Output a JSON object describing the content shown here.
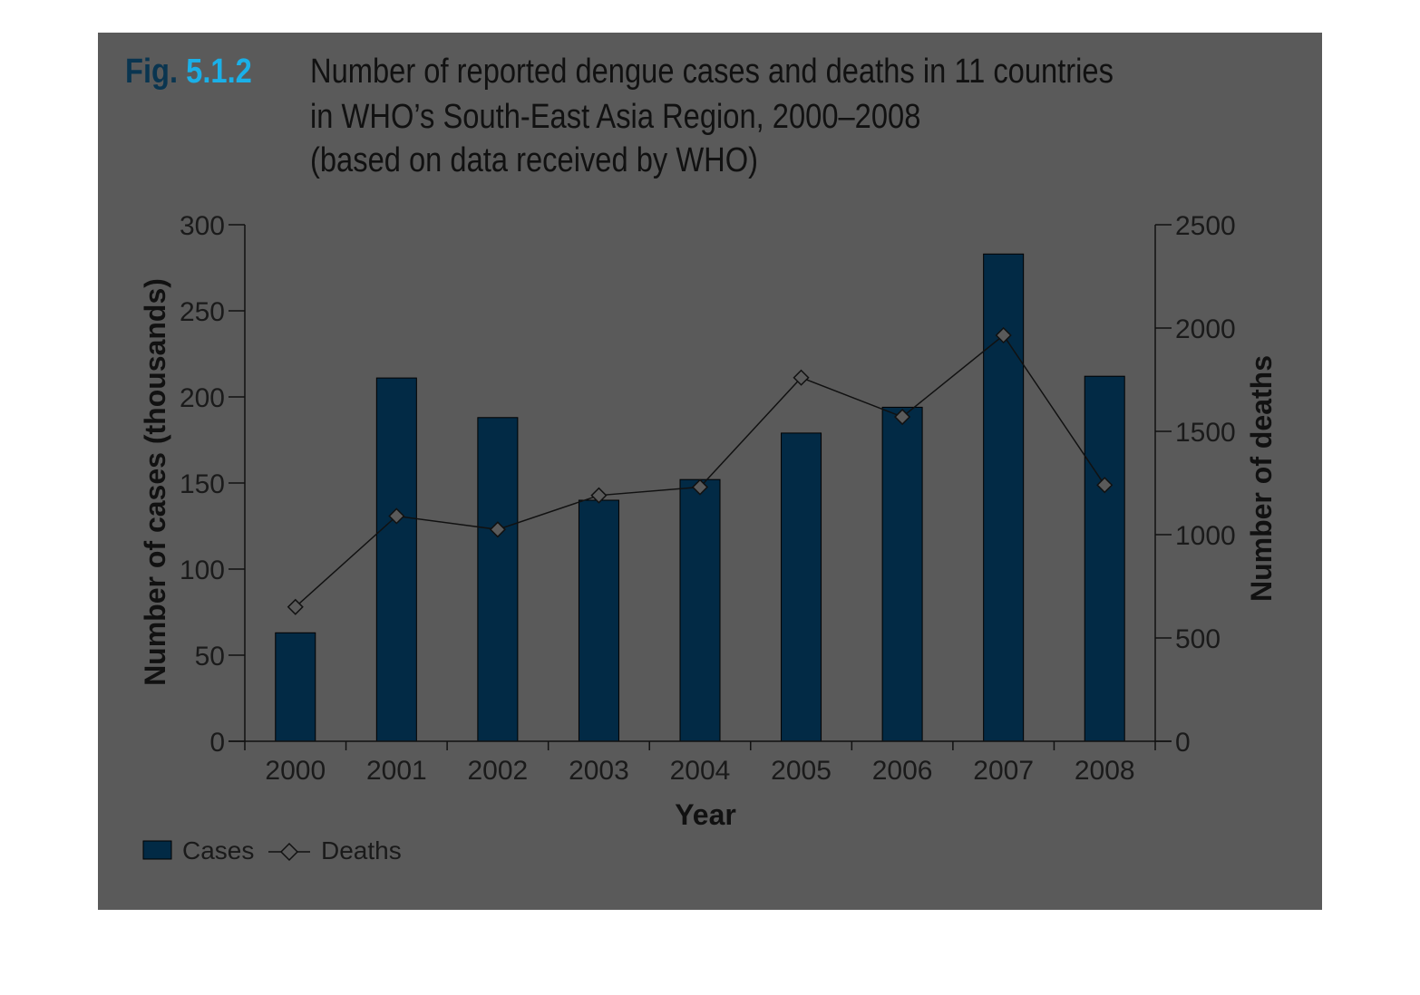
{
  "colors": {
    "panel": "#5a5a5a",
    "bar": "#022a45",
    "title_accent": "#1ab0e8",
    "fig_text": "#0a3550",
    "line": "#111111",
    "marker_fill": "#5a5a5a"
  },
  "figure": {
    "fig_word": "Fig.",
    "fig_number": "5.1.2",
    "title_lines": [
      "Number of reported dengue cases and deaths in 11 countries",
      "in WHO’s South-East Asia Region, 2000–2008",
      "(based on data received by WHO)"
    ]
  },
  "chart_data": {
    "type": "bar",
    "categories": [
      "2000",
      "2001",
      "2002",
      "2003",
      "2004",
      "2005",
      "2006",
      "2007",
      "2008"
    ],
    "series": [
      {
        "name": "Cases",
        "type": "bar",
        "axis": "left",
        "values": [
          63,
          211,
          188,
          140,
          152,
          179,
          194,
          283,
          212
        ]
      },
      {
        "name": "Deaths",
        "type": "line",
        "axis": "right",
        "marker": "diamond",
        "values": [
          650,
          1090,
          1025,
          1190,
          1230,
          1760,
          1570,
          1965,
          1240
        ]
      }
    ],
    "xlabel": "Year",
    "ylabel": "Number of cases (thousands)",
    "ylabel_right": "Number of deaths",
    "ylim": [
      0,
      300
    ],
    "ylim_right": [
      0,
      2500
    ],
    "yticks": [
      0,
      50,
      100,
      150,
      200,
      250,
      300
    ],
    "yticks_right": [
      0,
      500,
      1000,
      1500,
      2000,
      2500
    ],
    "legend": {
      "placement": "bottom-left",
      "entries": [
        "Cases",
        "Deaths"
      ]
    },
    "grid": false
  }
}
